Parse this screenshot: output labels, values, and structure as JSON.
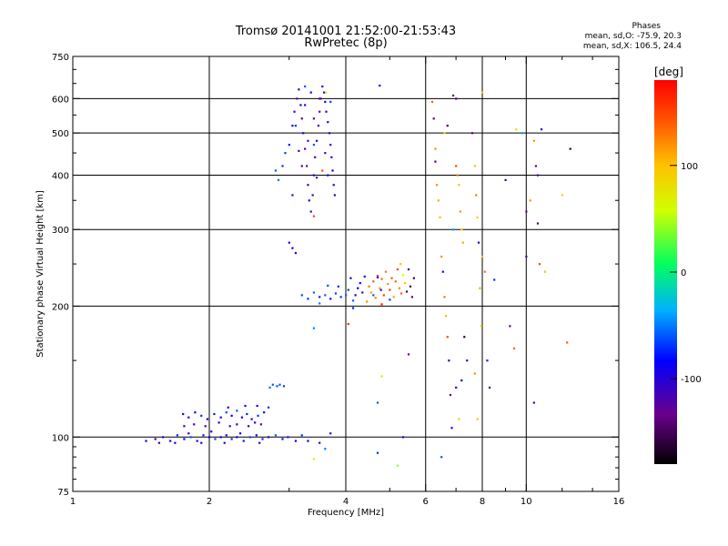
{
  "header": {
    "title_line1": "Tromsø 20141001 21:52:00-21:53:43",
    "title_line2": "RwPretec (8p)",
    "stats_title": "Phases",
    "stats_line1": "mean, sd,O: -75.9, 20.3",
    "stats_line2": "mean, sd,X: 106.5, 24.4"
  },
  "chart_data": {
    "type": "scatter",
    "xlabel": "Frequency [MHz]",
    "ylabel": "Stationary phase Virtual Height [km]",
    "xscale": "log",
    "yscale": "log",
    "xlim": [
      1,
      16
    ],
    "ylim": [
      75,
      750
    ],
    "xticks": [
      {
        "v": 1,
        "label": "1"
      },
      {
        "v": 2,
        "label": "2"
      },
      {
        "v": 4,
        "label": "4"
      },
      {
        "v": 6,
        "label": "6"
      },
      {
        "v": 8,
        "label": "8"
      },
      {
        "v": 10,
        "label": "10"
      },
      {
        "v": 16,
        "label": "16"
      }
    ],
    "yticks": [
      {
        "v": 75,
        "label": "75"
      },
      {
        "v": 100,
        "label": "100"
      },
      {
        "v": 200,
        "label": "200"
      },
      {
        "v": 300,
        "label": "300"
      },
      {
        "v": 400,
        "label": "400"
      },
      {
        "v": 500,
        "label": "500"
      },
      {
        "v": 600,
        "label": "600"
      },
      {
        "v": 750,
        "label": "750"
      }
    ],
    "grid_x": [
      2,
      4,
      6,
      8,
      10
    ],
    "grid_y": [
      100,
      200,
      300,
      400,
      500,
      600
    ],
    "colorbar": {
      "label": "[deg]",
      "range": [
        -180,
        180
      ],
      "ticks": [
        {
          "v": 100,
          "label": "100"
        },
        {
          "v": 0,
          "label": "0"
        },
        {
          "v": -100,
          "label": "-100"
        }
      ]
    },
    "points": [
      {
        "x": 1.45,
        "y": 98,
        "p": -85
      },
      {
        "x": 1.52,
        "y": 99,
        "p": -95
      },
      {
        "x": 1.58,
        "y": 100,
        "p": -80
      },
      {
        "x": 1.64,
        "y": 98,
        "p": -90
      },
      {
        "x": 1.7,
        "y": 101,
        "p": -70
      },
      {
        "x": 1.76,
        "y": 99,
        "p": -88
      },
      {
        "x": 1.82,
        "y": 100,
        "p": -60
      },
      {
        "x": 1.88,
        "y": 98,
        "p": -92
      },
      {
        "x": 1.94,
        "y": 101,
        "p": -75
      },
      {
        "x": 2.0,
        "y": 100,
        "p": -85
      },
      {
        "x": 2.06,
        "y": 99,
        "p": -65
      },
      {
        "x": 2.12,
        "y": 100,
        "p": -95
      },
      {
        "x": 2.18,
        "y": 101,
        "p": -80
      },
      {
        "x": 2.24,
        "y": 99,
        "p": -70
      },
      {
        "x": 2.3,
        "y": 100,
        "p": -90
      },
      {
        "x": 2.38,
        "y": 98,
        "p": -78
      },
      {
        "x": 2.46,
        "y": 100,
        "p": -62
      },
      {
        "x": 2.54,
        "y": 101,
        "p": -88
      },
      {
        "x": 2.62,
        "y": 99,
        "p": -72
      },
      {
        "x": 2.7,
        "y": 100,
        "p": -96
      },
      {
        "x": 2.8,
        "y": 101,
        "p": -58
      },
      {
        "x": 2.9,
        "y": 99,
        "p": -80
      },
      {
        "x": 1.55,
        "y": 97,
        "p": -110
      },
      {
        "x": 1.68,
        "y": 97,
        "p": -100
      },
      {
        "x": 1.8,
        "y": 102,
        "p": -105
      },
      {
        "x": 1.92,
        "y": 97,
        "p": -100
      },
      {
        "x": 2.02,
        "y": 103,
        "p": -108
      },
      {
        "x": 2.16,
        "y": 97,
        "p": -100
      },
      {
        "x": 2.34,
        "y": 102,
        "p": -95
      },
      {
        "x": 2.58,
        "y": 97,
        "p": -105
      },
      {
        "x": 1.75,
        "y": 113,
        "p": -90
      },
      {
        "x": 1.8,
        "y": 111,
        "p": -95
      },
      {
        "x": 1.86,
        "y": 114,
        "p": -85
      },
      {
        "x": 1.92,
        "y": 112,
        "p": -70
      },
      {
        "x": 1.98,
        "y": 110,
        "p": -90
      },
      {
        "x": 2.05,
        "y": 113,
        "p": -75
      },
      {
        "x": 2.12,
        "y": 111,
        "p": -95
      },
      {
        "x": 2.18,
        "y": 114,
        "p": -65
      },
      {
        "x": 2.24,
        "y": 112,
        "p": -85
      },
      {
        "x": 2.3,
        "y": 115,
        "p": -60
      },
      {
        "x": 2.36,
        "y": 111,
        "p": -90
      },
      {
        "x": 2.42,
        "y": 113,
        "p": -75
      },
      {
        "x": 2.48,
        "y": 110,
        "p": -98
      },
      {
        "x": 2.56,
        "y": 112,
        "p": -70
      },
      {
        "x": 2.64,
        "y": 114,
        "p": -80
      },
      {
        "x": 1.76,
        "y": 106,
        "p": -110
      },
      {
        "x": 1.85,
        "y": 107,
        "p": -120
      },
      {
        "x": 1.96,
        "y": 106,
        "p": -115
      },
      {
        "x": 2.1,
        "y": 108,
        "p": -100
      },
      {
        "x": 2.22,
        "y": 106,
        "p": -118
      },
      {
        "x": 2.3,
        "y": 107,
        "p": -105
      },
      {
        "x": 2.44,
        "y": 106,
        "p": -112
      },
      {
        "x": 2.52,
        "y": 108,
        "p": -100
      },
      {
        "x": 2.6,
        "y": 107,
        "p": -120
      },
      {
        "x": 2.2,
        "y": 117,
        "p": -95
      },
      {
        "x": 2.4,
        "y": 118,
        "p": -90
      },
      {
        "x": 2.55,
        "y": 118,
        "p": -88
      },
      {
        "x": 2.7,
        "y": 117,
        "p": -70
      },
      {
        "x": 2.76,
        "y": 132,
        "p": -60
      },
      {
        "x": 2.82,
        "y": 131,
        "p": -62
      },
      {
        "x": 2.86,
        "y": 132,
        "p": -58
      },
      {
        "x": 2.92,
        "y": 131,
        "p": -65
      },
      {
        "x": 2.72,
        "y": 130,
        "p": -55
      },
      {
        "x": 2.98,
        "y": 100,
        "p": -75
      },
      {
        "x": 3.1,
        "y": 98,
        "p": -90
      },
      {
        "x": 3.2,
        "y": 101,
        "p": -65
      },
      {
        "x": 3.3,
        "y": 98,
        "p": -85
      },
      {
        "x": 3.5,
        "y": 97,
        "p": -110
      },
      {
        "x": 3.7,
        "y": 102,
        "p": -100
      },
      {
        "x": 3.4,
        "y": 89,
        "p": 60
      },
      {
        "x": 3.6,
        "y": 94,
        "p": -50
      },
      {
        "x": 3.0,
        "y": 280,
        "p": -100
      },
      {
        "x": 3.05,
        "y": 272,
        "p": -95
      },
      {
        "x": 3.1,
        "y": 265,
        "p": -105
      },
      {
        "x": 2.8,
        "y": 410,
        "p": -60
      },
      {
        "x": 2.84,
        "y": 390,
        "p": -55
      },
      {
        "x": 2.9,
        "y": 420,
        "p": -70
      },
      {
        "x": 2.94,
        "y": 450,
        "p": -65
      },
      {
        "x": 3.0,
        "y": 470,
        "p": -80
      },
      {
        "x": 3.05,
        "y": 520,
        "p": -95
      },
      {
        "x": 3.08,
        "y": 560,
        "p": -110
      },
      {
        "x": 3.12,
        "y": 600,
        "p": -120
      },
      {
        "x": 3.15,
        "y": 630,
        "p": -105
      },
      {
        "x": 3.18,
        "y": 580,
        "p": -90
      },
      {
        "x": 3.2,
        "y": 540,
        "p": -125
      },
      {
        "x": 3.22,
        "y": 500,
        "p": -100
      },
      {
        "x": 3.25,
        "y": 460,
        "p": -115
      },
      {
        "x": 3.28,
        "y": 420,
        "p": -130
      },
      {
        "x": 3.3,
        "y": 380,
        "p": -105
      },
      {
        "x": 3.32,
        "y": 350,
        "p": -95
      },
      {
        "x": 3.35,
        "y": 330,
        "p": -120
      },
      {
        "x": 3.38,
        "y": 360,
        "p": -110
      },
      {
        "x": 3.4,
        "y": 400,
        "p": -100
      },
      {
        "x": 3.42,
        "y": 440,
        "p": -118
      },
      {
        "x": 3.45,
        "y": 480,
        "p": -96
      },
      {
        "x": 3.48,
        "y": 520,
        "p": -108
      },
      {
        "x": 3.5,
        "y": 560,
        "p": -125
      },
      {
        "x": 3.52,
        "y": 600,
        "p": -112
      },
      {
        "x": 3.55,
        "y": 640,
        "p": -100
      },
      {
        "x": 3.58,
        "y": 620,
        "p": -95
      },
      {
        "x": 3.6,
        "y": 590,
        "p": -80
      },
      {
        "x": 3.62,
        "y": 560,
        "p": -105
      },
      {
        "x": 3.65,
        "y": 530,
        "p": -115
      },
      {
        "x": 3.68,
        "y": 500,
        "p": -98
      },
      {
        "x": 3.7,
        "y": 470,
        "p": -120
      },
      {
        "x": 3.72,
        "y": 440,
        "p": -102
      },
      {
        "x": 3.74,
        "y": 410,
        "p": -90
      },
      {
        "x": 3.76,
        "y": 380,
        "p": -110
      },
      {
        "x": 3.78,
        "y": 360,
        "p": -100
      },
      {
        "x": 3.2,
        "y": 420,
        "p": -140
      },
      {
        "x": 3.3,
        "y": 480,
        "p": -135
      },
      {
        "x": 3.4,
        "y": 540,
        "p": -140
      },
      {
        "x": 3.5,
        "y": 600,
        "p": -138
      },
      {
        "x": 3.6,
        "y": 450,
        "p": -132
      },
      {
        "x": 3.1,
        "y": 520,
        "p": -70
      },
      {
        "x": 3.4,
        "y": 470,
        "p": -60
      },
      {
        "x": 3.7,
        "y": 590,
        "p": -65
      },
      {
        "x": 3.62,
        "y": 620,
        "p": 60
      },
      {
        "x": 3.55,
        "y": 410,
        "p": 150
      },
      {
        "x": 3.4,
        "y": 322,
        "p": 150
      },
      {
        "x": 3.25,
        "y": 640,
        "p": -60
      },
      {
        "x": 3.35,
        "y": 620,
        "p": -80
      },
      {
        "x": 3.45,
        "y": 395,
        "p": -110
      },
      {
        "x": 3.15,
        "y": 455,
        "p": -120
      },
      {
        "x": 3.25,
        "y": 580,
        "p": -100
      },
      {
        "x": 3.65,
        "y": 400,
        "p": -85
      },
      {
        "x": 3.05,
        "y": 360,
        "p": -115
      },
      {
        "x": 3.2,
        "y": 212,
        "p": -65
      },
      {
        "x": 3.3,
        "y": 208,
        "p": -70
      },
      {
        "x": 3.4,
        "y": 215,
        "p": -55
      },
      {
        "x": 3.5,
        "y": 210,
        "p": -75
      },
      {
        "x": 3.6,
        "y": 212,
        "p": -60
      },
      {
        "x": 3.7,
        "y": 208,
        "p": -80
      },
      {
        "x": 3.8,
        "y": 214,
        "p": -65
      },
      {
        "x": 3.9,
        "y": 210,
        "p": -70
      },
      {
        "x": 4.0,
        "y": 212,
        "p": -55
      },
      {
        "x": 3.5,
        "y": 203,
        "p": -50
      },
      {
        "x": 3.65,
        "y": 223,
        "p": -60
      },
      {
        "x": 3.85,
        "y": 222,
        "p": -75
      },
      {
        "x": 4.05,
        "y": 218,
        "p": -68
      },
      {
        "x": 4.15,
        "y": 206,
        "p": -58
      },
      {
        "x": 3.4,
        "y": 178,
        "p": -45
      },
      {
        "x": 4.1,
        "y": 232,
        "p": -90
      },
      {
        "x": 4.2,
        "y": 212,
        "p": -100
      },
      {
        "x": 4.25,
        "y": 220,
        "p": -85
      },
      {
        "x": 4.3,
        "y": 226,
        "p": -95
      },
      {
        "x": 4.35,
        "y": 215,
        "p": -110
      },
      {
        "x": 4.45,
        "y": 205,
        "p": 120
      },
      {
        "x": 4.5,
        "y": 222,
        "p": 130
      },
      {
        "x": 4.55,
        "y": 215,
        "p": 115
      },
      {
        "x": 4.6,
        "y": 228,
        "p": 140
      },
      {
        "x": 4.65,
        "y": 209,
        "p": 125
      },
      {
        "x": 4.7,
        "y": 235,
        "p": 145
      },
      {
        "x": 4.75,
        "y": 220,
        "p": 110
      },
      {
        "x": 4.8,
        "y": 231,
        "p": 135
      },
      {
        "x": 4.85,
        "y": 212,
        "p": 150
      },
      {
        "x": 4.9,
        "y": 240,
        "p": 128
      },
      {
        "x": 4.95,
        "y": 225,
        "p": 118
      },
      {
        "x": 5.0,
        "y": 218,
        "p": 155
      },
      {
        "x": 5.05,
        "y": 232,
        "p": 142
      },
      {
        "x": 5.1,
        "y": 210,
        "p": 112
      },
      {
        "x": 5.15,
        "y": 228,
        "p": 136
      },
      {
        "x": 5.2,
        "y": 243,
        "p": 148
      },
      {
        "x": 5.25,
        "y": 220,
        "p": 122
      },
      {
        "x": 5.3,
        "y": 214,
        "p": 138
      },
      {
        "x": 5.4,
        "y": 226,
        "p": 95
      },
      {
        "x": 5.45,
        "y": 216,
        "p": -150
      },
      {
        "x": 5.5,
        "y": 243,
        "p": -145
      },
      {
        "x": 5.55,
        "y": 222,
        "p": -155
      },
      {
        "x": 5.6,
        "y": 210,
        "p": -140
      },
      {
        "x": 5.65,
        "y": 232,
        "p": -150
      },
      {
        "x": 4.6,
        "y": 212,
        "p": -60
      },
      {
        "x": 4.78,
        "y": 218,
        "p": -100
      },
      {
        "x": 5.0,
        "y": 207,
        "p": -70
      },
      {
        "x": 4.4,
        "y": 234,
        "p": -80
      },
      {
        "x": 4.05,
        "y": 182,
        "p": 160
      },
      {
        "x": 4.75,
        "y": 643,
        "p": -100
      },
      {
        "x": 4.7,
        "y": 233,
        "p": -90
      },
      {
        "x": 5.35,
        "y": 236,
        "p": 60
      },
      {
        "x": 4.8,
        "y": 202,
        "p": 170
      },
      {
        "x": 5.28,
        "y": 250,
        "p": 100
      },
      {
        "x": 4.15,
        "y": 198,
        "p": -75
      },
      {
        "x": 5.5,
        "y": 155,
        "p": -130
      },
      {
        "x": 4.7,
        "y": 120,
        "p": -60
      },
      {
        "x": 4.7,
        "y": 92,
        "p": -70
      },
      {
        "x": 5.2,
        "y": 86,
        "p": 40
      },
      {
        "x": 4.8,
        "y": 138,
        "p": 80
      },
      {
        "x": 5.35,
        "y": 100,
        "p": -100
      },
      {
        "x": 6.2,
        "y": 590,
        "p": 140
      },
      {
        "x": 6.25,
        "y": 540,
        "p": -140
      },
      {
        "x": 6.3,
        "y": 430,
        "p": -120
      },
      {
        "x": 6.35,
        "y": 380,
        "p": 120
      },
      {
        "x": 6.4,
        "y": 350,
        "p": 110
      },
      {
        "x": 6.45,
        "y": 320,
        "p": 100
      },
      {
        "x": 6.5,
        "y": 260,
        "p": 120
      },
      {
        "x": 6.55,
        "y": 240,
        "p": -90
      },
      {
        "x": 6.6,
        "y": 210,
        "p": 130
      },
      {
        "x": 6.65,
        "y": 190,
        "p": 100
      },
      {
        "x": 6.7,
        "y": 170,
        "p": 150
      },
      {
        "x": 6.75,
        "y": 150,
        "p": -100
      },
      {
        "x": 6.8,
        "y": 125,
        "p": -130
      },
      {
        "x": 6.85,
        "y": 105,
        "p": -100
      },
      {
        "x": 6.9,
        "y": 610,
        "p": -140
      },
      {
        "x": 7.0,
        "y": 600,
        "p": -150
      },
      {
        "x": 7.0,
        "y": 420,
        "p": 150
      },
      {
        "x": 7.05,
        "y": 400,
        "p": 130
      },
      {
        "x": 7.1,
        "y": 380,
        "p": 100
      },
      {
        "x": 7.15,
        "y": 330,
        "p": 120
      },
      {
        "x": 7.2,
        "y": 300,
        "p": 90
      },
      {
        "x": 7.25,
        "y": 280,
        "p": 110
      },
      {
        "x": 7.3,
        "y": 170,
        "p": -160
      },
      {
        "x": 7.0,
        "y": 130,
        "p": -100
      },
      {
        "x": 7.1,
        "y": 110,
        "p": 90
      },
      {
        "x": 6.5,
        "y": 90,
        "p": -60
      },
      {
        "x": 6.3,
        "y": 460,
        "p": 120
      },
      {
        "x": 6.6,
        "y": 500,
        "p": 90
      },
      {
        "x": 6.7,
        "y": 520,
        "p": -150
      },
      {
        "x": 7.4,
        "y": 150,
        "p": -120
      },
      {
        "x": 7.6,
        "y": 500,
        "p": -140
      },
      {
        "x": 7.7,
        "y": 420,
        "p": 100
      },
      {
        "x": 7.75,
        "y": 360,
        "p": 130
      },
      {
        "x": 7.8,
        "y": 320,
        "p": 90
      },
      {
        "x": 7.85,
        "y": 280,
        "p": -100
      },
      {
        "x": 7.9,
        "y": 220,
        "p": 110
      },
      {
        "x": 7.95,
        "y": 180,
        "p": 90
      },
      {
        "x": 7.7,
        "y": 140,
        "p": 120
      },
      {
        "x": 7.8,
        "y": 110,
        "p": 90
      },
      {
        "x": 8.0,
        "y": 620,
        "p": 100
      },
      {
        "x": 8.0,
        "y": 260,
        "p": 100
      },
      {
        "x": 8.1,
        "y": 240,
        "p": 130
      },
      {
        "x": 8.2,
        "y": 150,
        "p": -120
      },
      {
        "x": 8.3,
        "y": 130,
        "p": -100
      },
      {
        "x": 8.5,
        "y": 230,
        "p": -70
      },
      {
        "x": 9.0,
        "y": 390,
        "p": -100
      },
      {
        "x": 9.2,
        "y": 180,
        "p": -130
      },
      {
        "x": 9.4,
        "y": 160,
        "p": 140
      },
      {
        "x": 9.5,
        "y": 510,
        "p": 80
      },
      {
        "x": 9.8,
        "y": 500,
        "p": -40
      },
      {
        "x": 10.0,
        "y": 260,
        "p": -120
      },
      {
        "x": 10.0,
        "y": 330,
        "p": -130
      },
      {
        "x": 10.2,
        "y": 350,
        "p": 120
      },
      {
        "x": 10.4,
        "y": 480,
        "p": 120
      },
      {
        "x": 10.5,
        "y": 420,
        "p": -130
      },
      {
        "x": 10.6,
        "y": 400,
        "p": -110
      },
      {
        "x": 10.6,
        "y": 310,
        "p": -140
      },
      {
        "x": 10.7,
        "y": 250,
        "p": 150
      },
      {
        "x": 10.4,
        "y": 120,
        "p": -120
      },
      {
        "x": 10.8,
        "y": 510,
        "p": -90
      },
      {
        "x": 11.0,
        "y": 240,
        "p": 100
      },
      {
        "x": 12.5,
        "y": 460,
        "p": -160
      },
      {
        "x": 12.3,
        "y": 165,
        "p": 140
      },
      {
        "x": 12.0,
        "y": 360,
        "p": 90
      },
      {
        "x": 7.2,
        "y": 135,
        "p": -150
      },
      {
        "x": 6.9,
        "y": 300,
        "p": -40
      }
    ]
  }
}
